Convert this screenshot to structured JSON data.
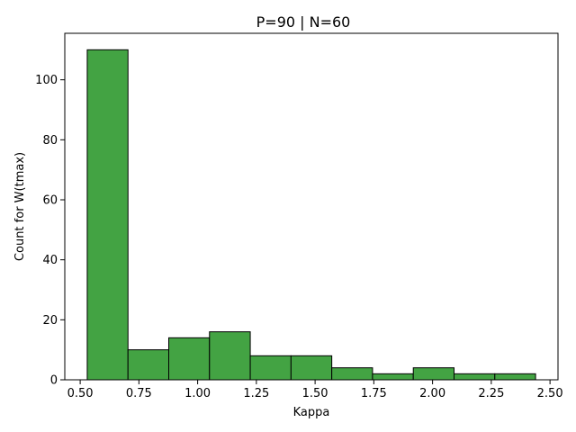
{
  "chart_data": {
    "type": "bar",
    "title": "P=90 | N=60",
    "xlabel": "Kappa",
    "ylabel": "Count for W(tmax)",
    "bin_edges": [
      0.53,
      0.7035,
      0.877,
      1.0505,
      1.224,
      1.3975,
      1.571,
      1.7445,
      1.918,
      2.0915,
      2.265,
      2.4385
    ],
    "values": [
      110,
      10,
      14,
      16,
      8,
      8,
      4,
      2,
      4,
      2,
      2
    ],
    "xlim": [
      0.4345,
      2.534
    ],
    "ylim": [
      0,
      115.5
    ],
    "xticks": [
      0.5,
      0.75,
      1.0,
      1.25,
      1.5,
      1.75,
      2.0,
      2.25,
      2.5
    ],
    "xtick_labels": [
      "0.50",
      "0.75",
      "1.00",
      "1.25",
      "1.50",
      "1.75",
      "2.00",
      "2.25",
      "2.50"
    ],
    "yticks": [
      0,
      20,
      40,
      60,
      80,
      100
    ],
    "ytick_labels": [
      "0",
      "20",
      "40",
      "60",
      "80",
      "100"
    ],
    "bar_color": "#43a343",
    "edge_color": "#000000",
    "grid": false,
    "legend": "none"
  }
}
